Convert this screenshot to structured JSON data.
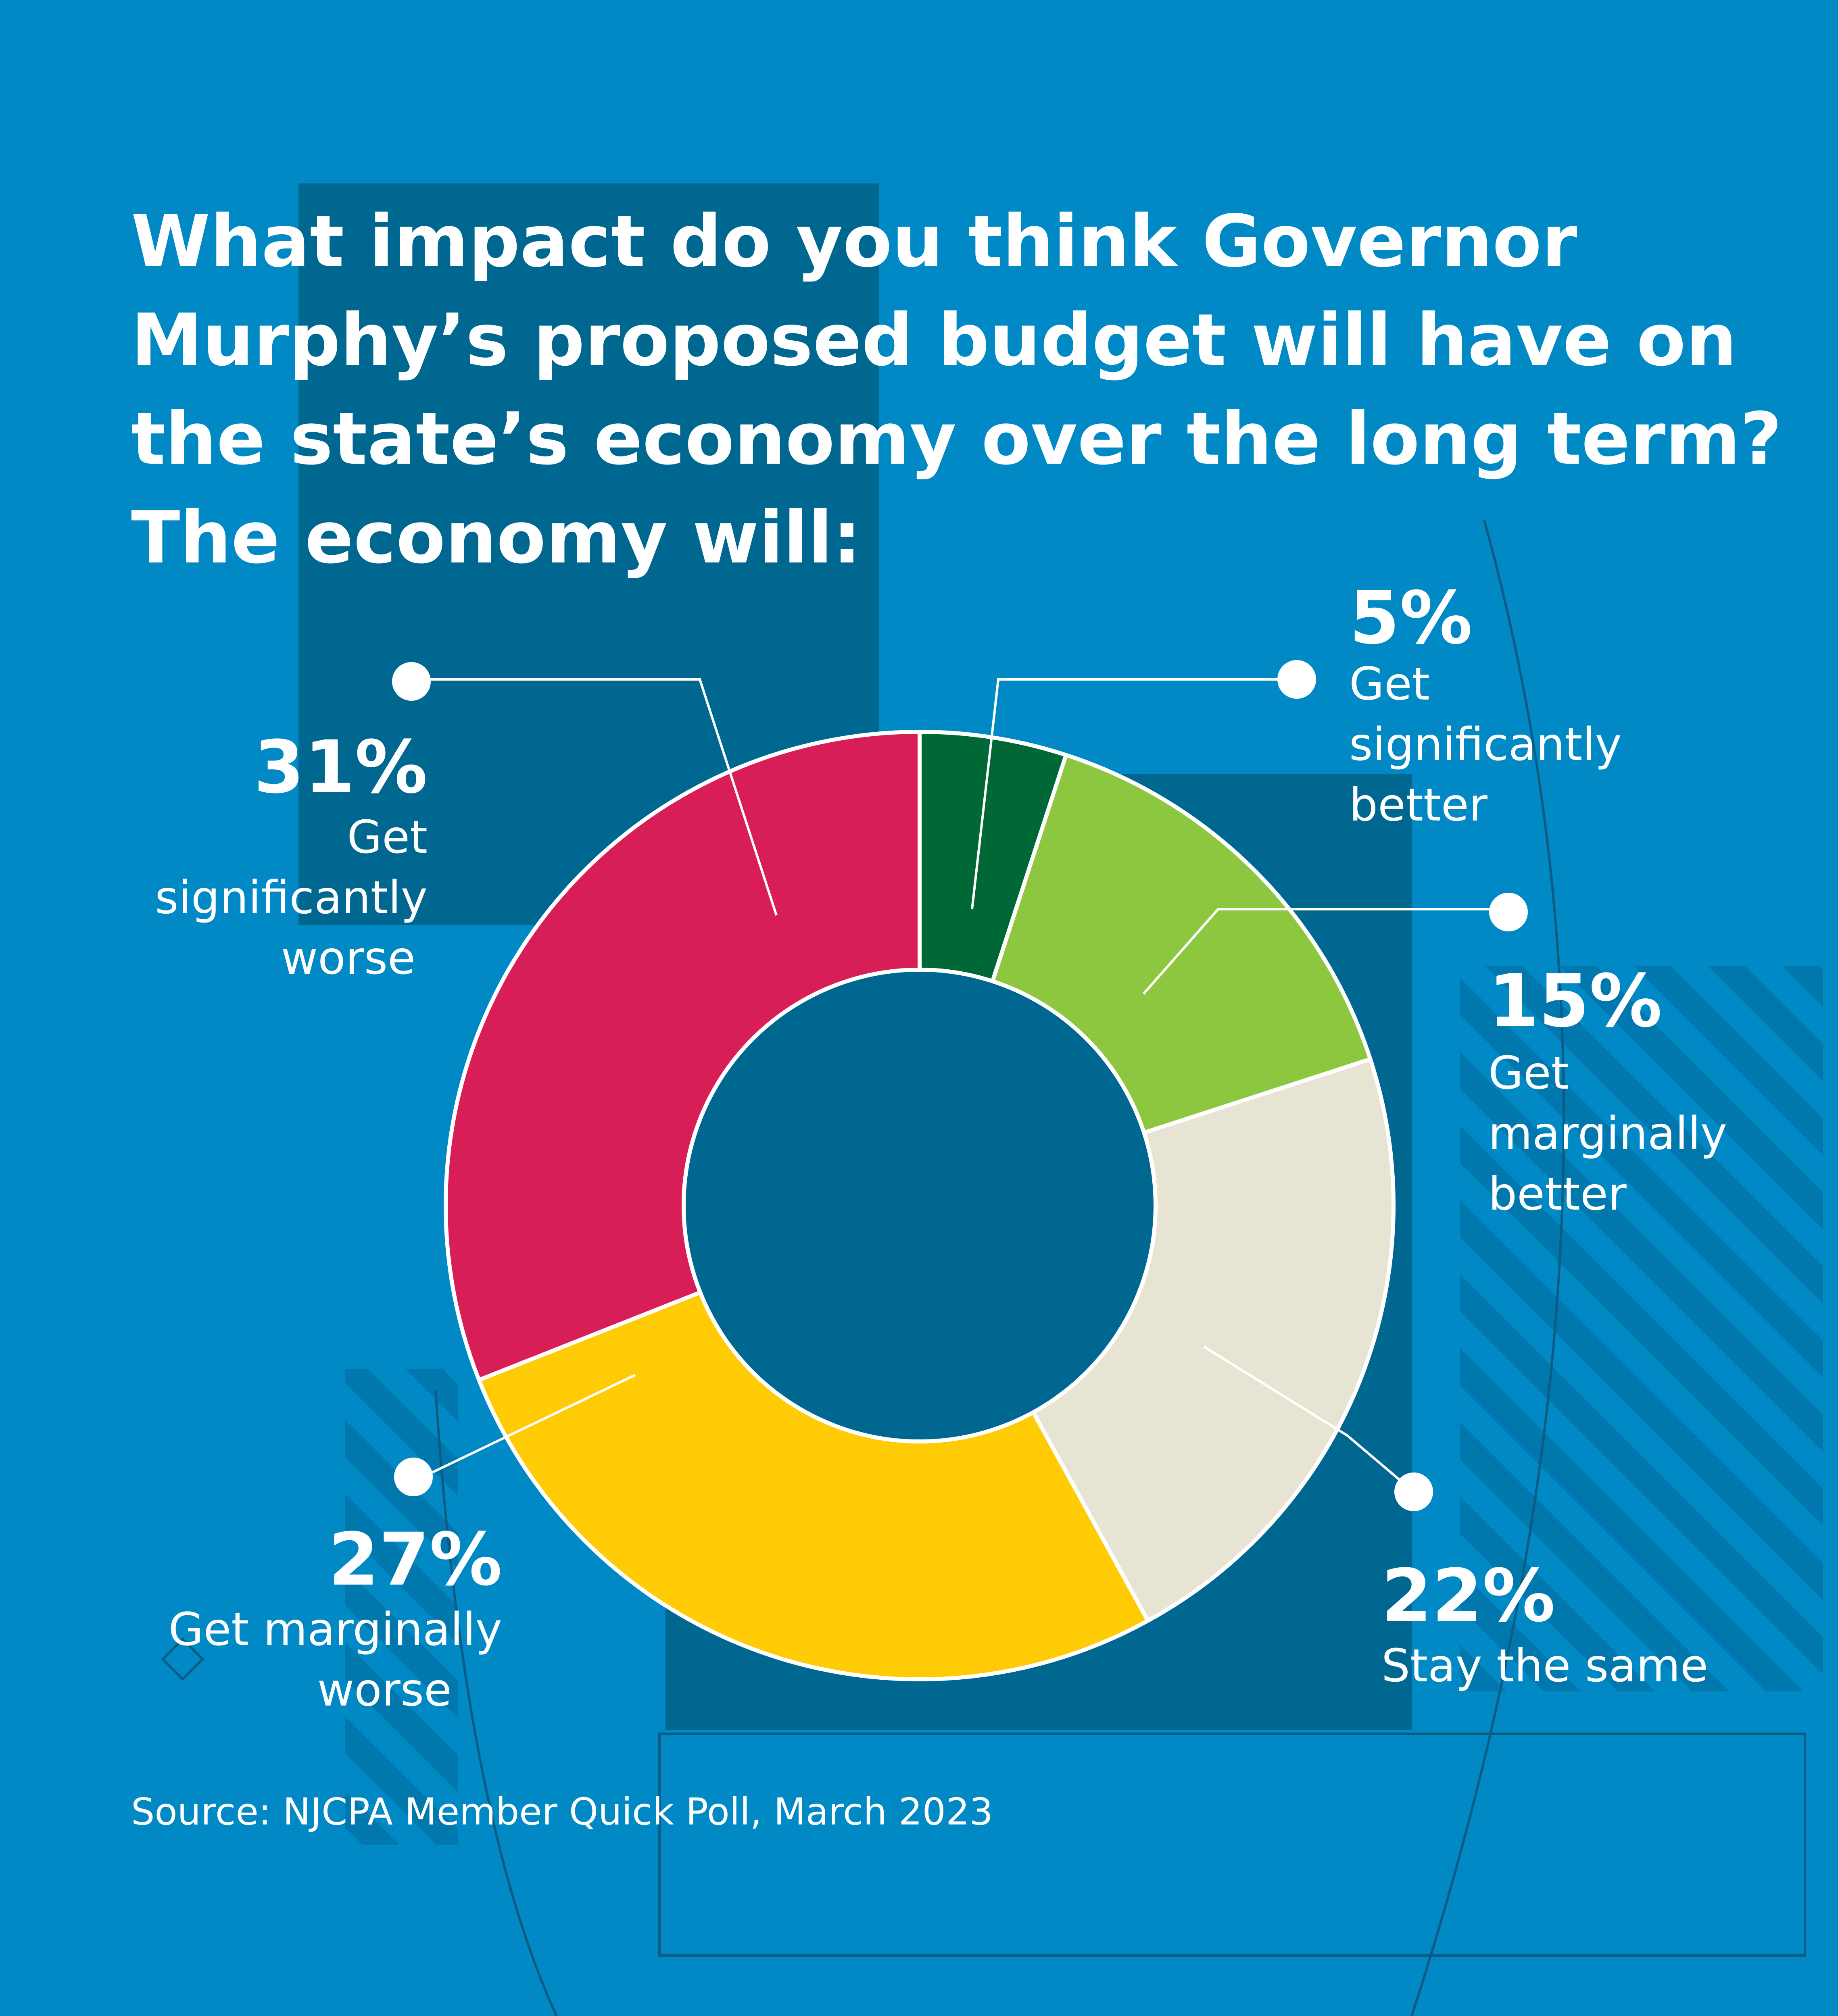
{
  "title_lines": [
    "What impact do you think Governor",
    "Murphy’s proposed budget will have on",
    "the state’s economy over the long term?",
    "The economy will:"
  ],
  "source": "Source: NJCPA Member Quick Poll, March 2023",
  "colors": {
    "background": "#0089c4",
    "panel": "#006890",
    "separator": "#ffffff",
    "text": "#ffffff"
  },
  "chart_data": {
    "type": "pie",
    "variant": "donut",
    "title": "What impact do you think Governor Murphy’s proposed budget will have on the state’s economy over the long term? The economy will:",
    "slices": [
      {
        "value": 5,
        "value_label": "5%",
        "label_lines": [
          "Get",
          "significantly",
          "better"
        ],
        "color": "#006837"
      },
      {
        "value": 15,
        "value_label": "15%",
        "label_lines": [
          "Get",
          "marginally",
          "better"
        ],
        "color": "#8dc63f"
      },
      {
        "value": 22,
        "value_label": "22%",
        "label_lines": [
          "Stay the same"
        ],
        "color": "#e8e4d4"
      },
      {
        "value": 27,
        "value_label": "27%",
        "label_lines": [
          "Get marginally",
          "worse"
        ],
        "color": "#ffcb05"
      },
      {
        "value": 31,
        "value_label": "31%",
        "label_lines": [
          "Get",
          "significantly",
          "worse"
        ],
        "color": "#d81e57"
      }
    ]
  }
}
